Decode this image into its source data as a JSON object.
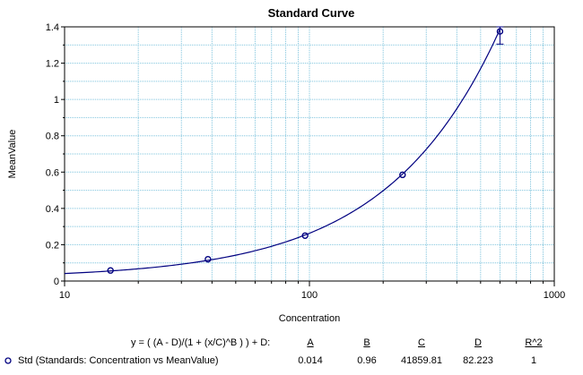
{
  "chart_data": {
    "type": "scatter",
    "title": "Standard Curve",
    "xlabel": "Concentration",
    "ylabel": "MeanValue",
    "x_scale": "log",
    "xlim": [
      10,
      1000
    ],
    "ylim": [
      0,
      1.4
    ],
    "x_ticks": [
      "10",
      "100",
      "1000"
    ],
    "y_ticks": [
      "0",
      "0.2",
      "0.4",
      "0.6",
      "0.8",
      "1",
      "1.2",
      "1.4"
    ],
    "grid": true,
    "series": [
      {
        "name": "Std (Standards: Concentration vs MeanValue)",
        "x": [
          15.4,
          38.5,
          96.0,
          240.0,
          600.0
        ],
        "y": [
          0.058,
          0.12,
          0.25,
          0.585,
          1.375
        ],
        "error_y": [
          0,
          0,
          0,
          0,
          0.07
        ]
      }
    ],
    "fit": {
      "equation": "y = ( (A - D)/(1 + (x/C)^B ) ) + D:",
      "param_headers": [
        "A",
        "B",
        "C",
        "D",
        "R^2"
      ],
      "param_values": [
        "0.014",
        "0.96",
        "41859.81",
        "82.223",
        "1"
      ],
      "A": 0.014,
      "B": 0.96,
      "C": 41859.81,
      "D": 82.223
    },
    "colors": {
      "series": "#000080",
      "grid": "#7fc4dd",
      "curve": "#000080"
    }
  }
}
